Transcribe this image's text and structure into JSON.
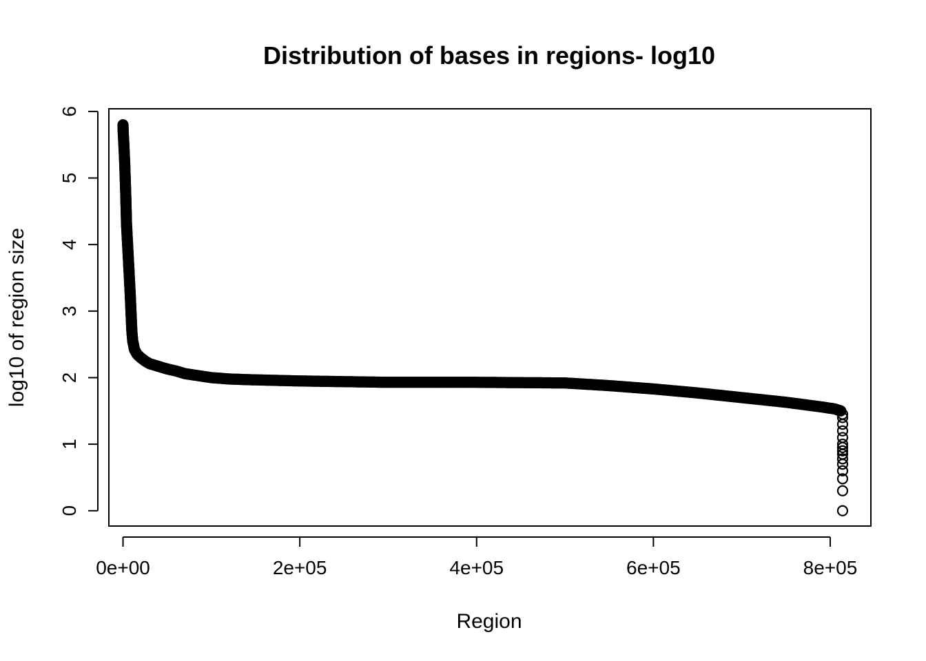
{
  "chart_data": {
    "type": "scatter",
    "title": "Distribution of bases in regions- log10",
    "xlabel": "Region",
    "ylabel": "log10 of region size",
    "xlim": [
      -16000,
      846000
    ],
    "ylim": [
      -0.23,
      6.04
    ],
    "x_ticks": [
      {
        "value": 0,
        "label": "0e+00"
      },
      {
        "value": 200000,
        "label": "2e+05"
      },
      {
        "value": 400000,
        "label": "4e+05"
      },
      {
        "value": 600000,
        "label": "6e+05"
      },
      {
        "value": 800000,
        "label": "8e+05"
      }
    ],
    "y_ticks": [
      {
        "value": 0,
        "label": "0"
      },
      {
        "value": 1,
        "label": "1"
      },
      {
        "value": 2,
        "label": "2"
      },
      {
        "value": 3,
        "label": "3"
      },
      {
        "value": 4,
        "label": "4"
      },
      {
        "value": 5,
        "label": "5"
      },
      {
        "value": 6,
        "label": "6"
      }
    ],
    "grid": false,
    "marker": "open-circle",
    "curve": [
      [
        0,
        5.8
      ],
      [
        200,
        5.7
      ],
      [
        1000,
        5.5
      ],
      [
        2000,
        5.2
      ],
      [
        3000,
        4.8
      ],
      [
        4000,
        4.3
      ],
      [
        6000,
        3.8
      ],
      [
        8000,
        3.3
      ],
      [
        9000,
        3.0
      ],
      [
        10000,
        2.7
      ],
      [
        11000,
        2.55
      ],
      [
        13000,
        2.42
      ],
      [
        16000,
        2.35
      ],
      [
        20000,
        2.3
      ],
      [
        25000,
        2.25
      ],
      [
        30000,
        2.21
      ],
      [
        40000,
        2.17
      ],
      [
        50000,
        2.13
      ],
      [
        60000,
        2.1
      ],
      [
        70000,
        2.06
      ],
      [
        80000,
        2.04
      ],
      [
        90000,
        2.02
      ],
      [
        100000,
        2.0
      ],
      [
        120000,
        1.98
      ],
      [
        140000,
        1.97
      ],
      [
        200000,
        1.95
      ],
      [
        300000,
        1.93
      ],
      [
        400000,
        1.93
      ],
      [
        500000,
        1.92
      ],
      [
        550000,
        1.88
      ],
      [
        600000,
        1.83
      ],
      [
        650000,
        1.77
      ],
      [
        700000,
        1.7
      ],
      [
        750000,
        1.63
      ],
      [
        790000,
        1.56
      ],
      [
        805000,
        1.53
      ],
      [
        812000,
        1.5
      ]
    ],
    "tail_points": [
      [
        814000,
        1.45
      ],
      [
        814000,
        1.4
      ],
      [
        814000,
        1.3
      ],
      [
        814000,
        1.2
      ],
      [
        814000,
        1.1
      ],
      [
        814000,
        1.0
      ],
      [
        814000,
        0.95
      ],
      [
        814000,
        0.9
      ],
      [
        814000,
        0.85
      ],
      [
        814000,
        0.78
      ],
      [
        814000,
        0.7
      ],
      [
        814000,
        0.6
      ],
      [
        814000,
        0.48
      ],
      [
        814000,
        0.3
      ],
      [
        814000,
        0.0
      ]
    ]
  }
}
